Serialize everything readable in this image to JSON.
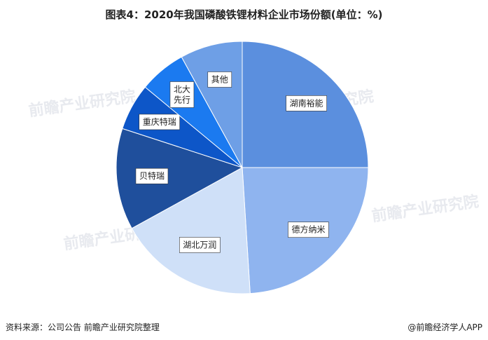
{
  "title": "图表4：2020年我国磷酸铁锂材料企业市场份额(单位：%)",
  "footer": {
    "source": "资料来源：公司公告 前瞻产业研究院整理",
    "brand": "@前瞻经济学人APP"
  },
  "watermark": "前瞻产业研究院",
  "chart_data": {
    "type": "pie",
    "title": "图表4：2020年我国磷酸铁锂材料企业市场份额(单位：%)",
    "unit": "%",
    "slices": [
      {
        "label": "湖南裕能",
        "value": 25,
        "color": "#5b8fde"
      },
      {
        "label": "德方纳米",
        "value": 24,
        "color": "#8fb4ef"
      },
      {
        "label": "湖北万润",
        "value": 18,
        "color": "#cfe0f8"
      },
      {
        "label": "贝特瑞",
        "value": 13,
        "color": "#1f4f9c"
      },
      {
        "label": "重庆特瑞",
        "value": 6,
        "color": "#0d56c8"
      },
      {
        "label": "北大先行",
        "value": 6,
        "color": "#1b7af0"
      },
      {
        "label": "其他",
        "value": 8,
        "color": "#6e9fe6"
      }
    ]
  }
}
